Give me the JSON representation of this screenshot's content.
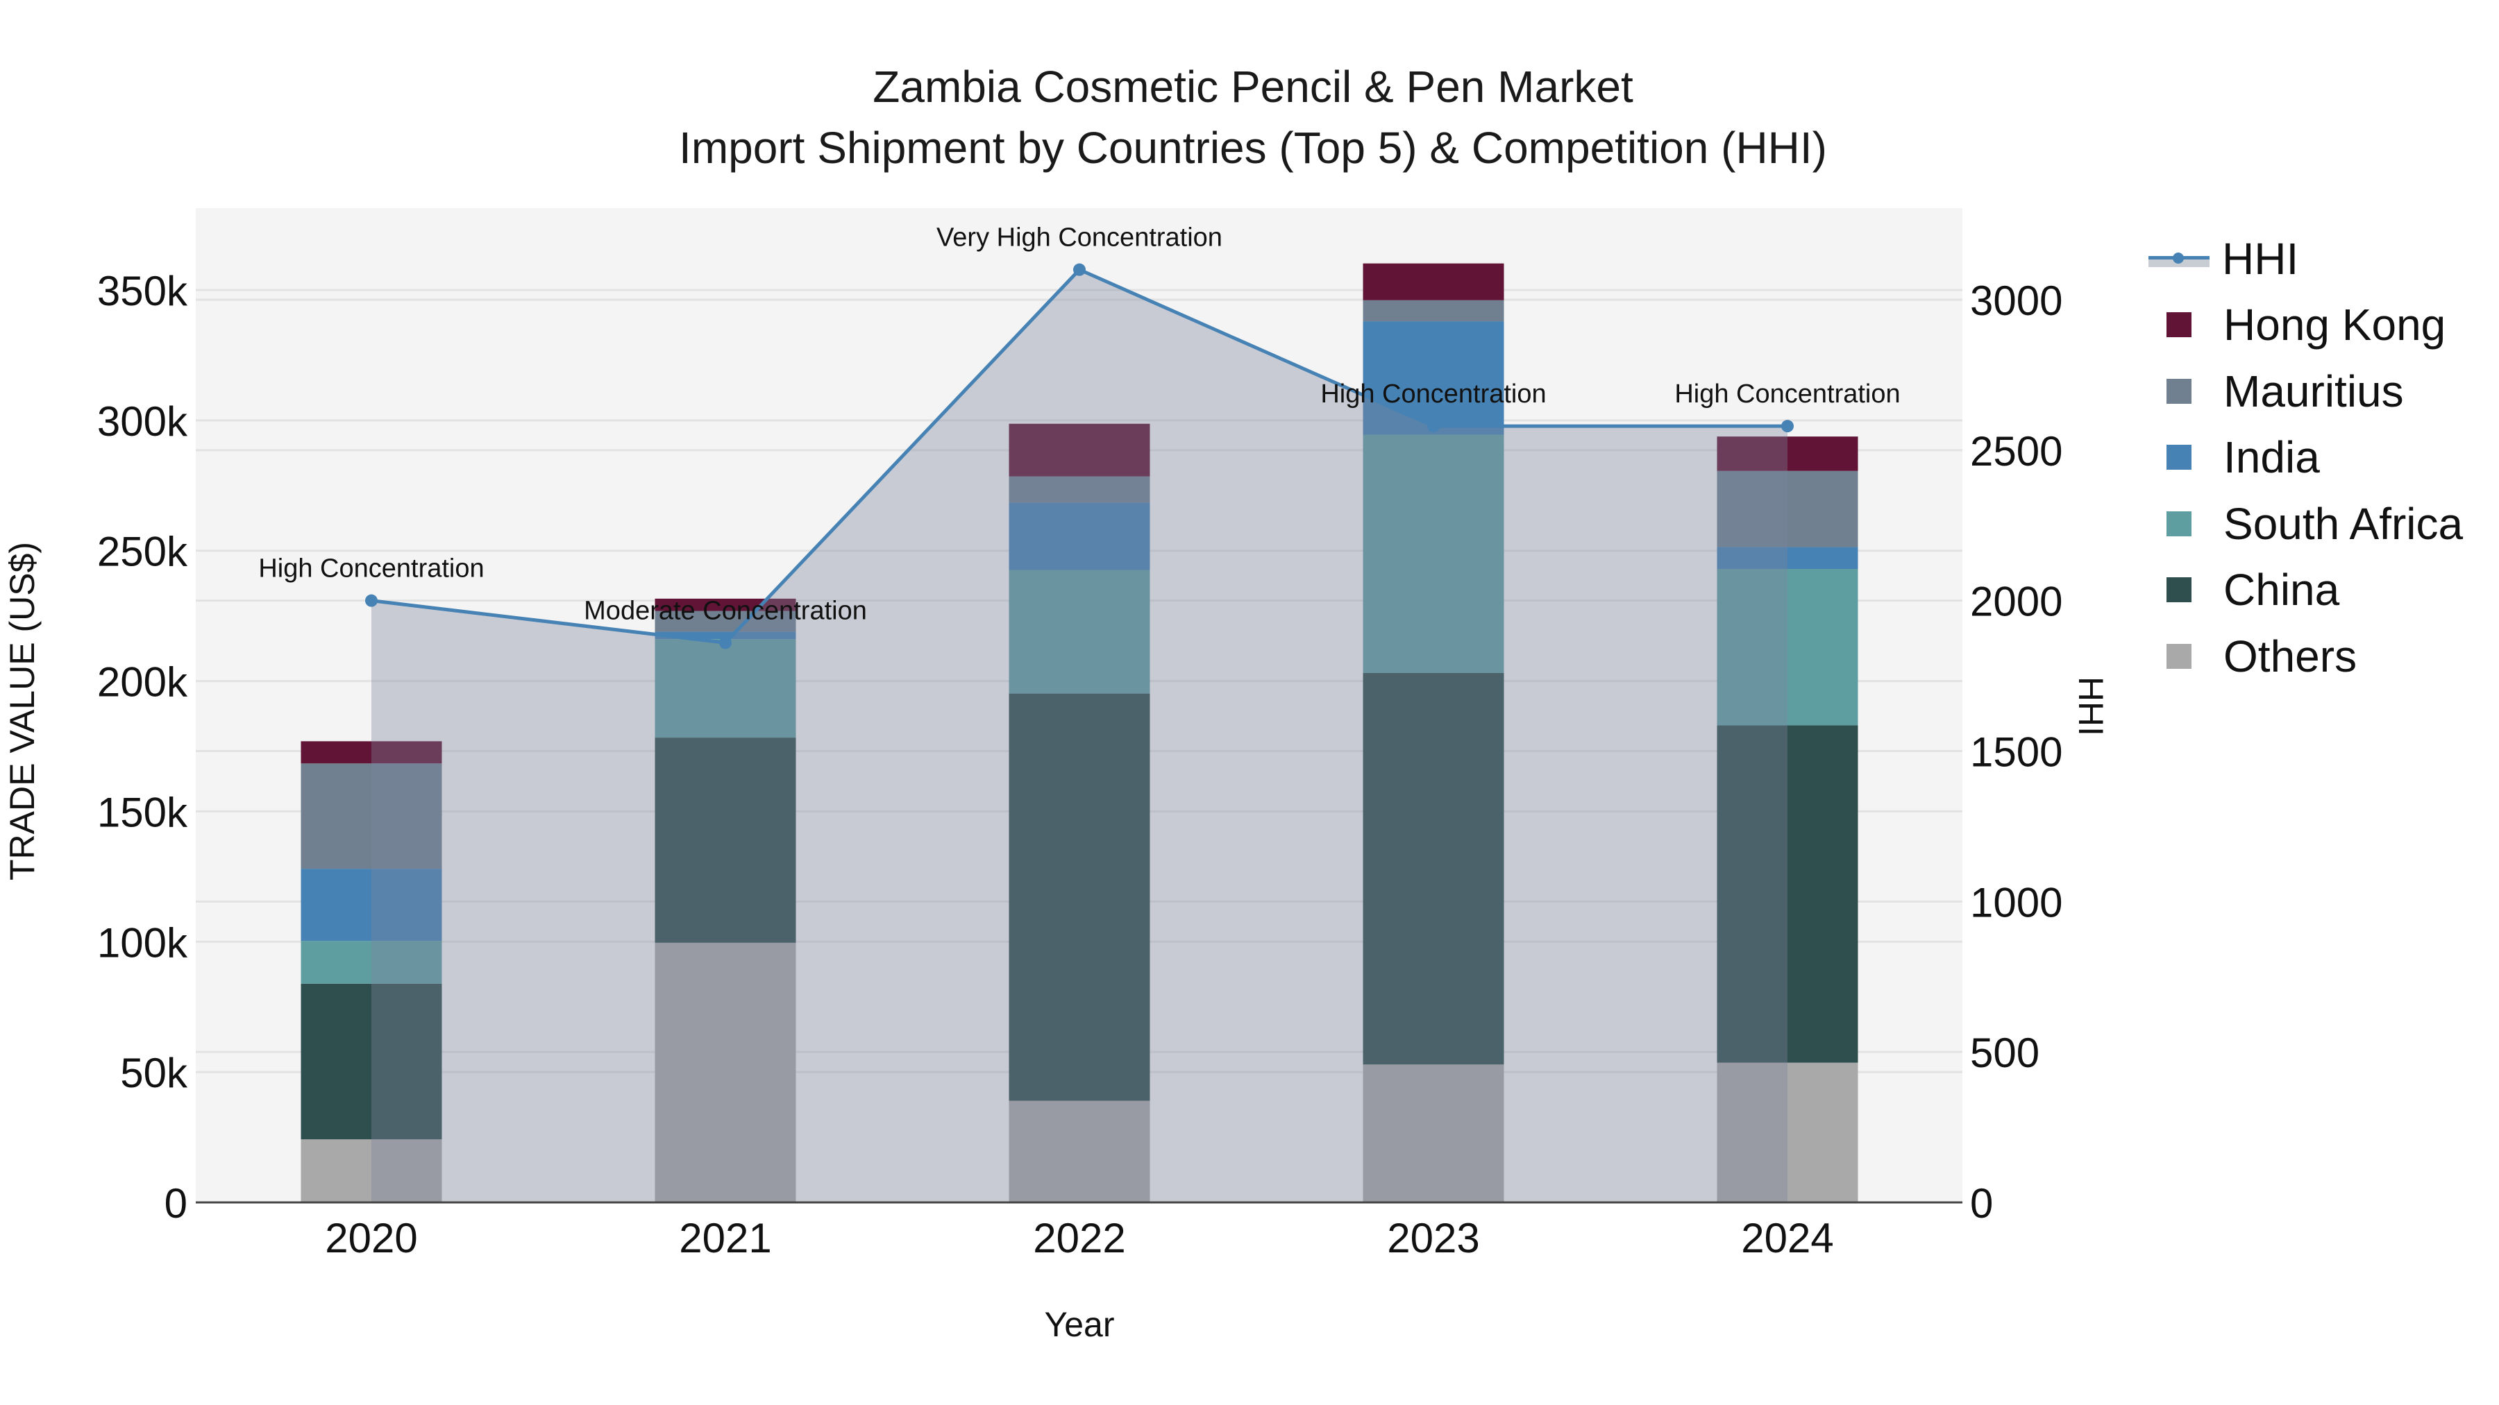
{
  "title": {
    "line1": "Zambia Cosmetic Pencil & Pen Market",
    "line2": "Import Shipment by Countries (Top 5) & Competition (HHI)"
  },
  "axes": {
    "x_title": "Year",
    "y_title": "TRADE VALUE (US$)",
    "y2_title": "HHI"
  },
  "legend": {
    "items": [
      {
        "label": "HHI",
        "type": "line",
        "color": "#4682b4"
      },
      {
        "label": "Hong Kong",
        "type": "bar",
        "color": "#611435"
      },
      {
        "label": "Mauritius",
        "type": "bar",
        "color": "#708090"
      },
      {
        "label": "India",
        "type": "bar",
        "color": "#4682b4"
      },
      {
        "label": "South Africa",
        "type": "bar",
        "color": "#5f9ea0"
      },
      {
        "label": "China",
        "type": "bar",
        "color": "#2f4f4f"
      },
      {
        "label": "Others",
        "type": "bar",
        "color": "#a9a9a9"
      }
    ]
  },
  "chart_data": {
    "type": "bar",
    "stacked": true,
    "title": "Zambia Cosmetic Pencil & Pen Market — Import Shipment by Countries (Top 5) & Competition (HHI)",
    "xlabel": "Year",
    "ylabel": "TRADE VALUE (US$)",
    "y2label": "HHI",
    "categories": [
      "2020",
      "2021",
      "2022",
      "2023",
      "2024"
    ],
    "ylim": [
      0,
      380000
    ],
    "y_ticks": [
      0,
      50000,
      100000,
      150000,
      200000,
      250000,
      300000,
      350000
    ],
    "y_tick_labels": [
      "0",
      "50k",
      "100k",
      "150k",
      "200k",
      "250k",
      "300k",
      "350k"
    ],
    "y2lim": [
      0,
      3280
    ],
    "y2_ticks": [
      0,
      500,
      1000,
      1500,
      2000,
      2500,
      3000
    ],
    "y2_tick_labels": [
      "0",
      "500",
      "1000",
      "1500",
      "2000",
      "2500",
      "3000"
    ],
    "series": [
      {
        "name": "Others",
        "color": "#a9a9a9",
        "values": [
          24200,
          99600,
          39000,
          52900,
          53600
        ]
      },
      {
        "name": "China",
        "color": "#2f4f4f",
        "values": [
          59700,
          78700,
          156200,
          150200,
          129400
        ]
      },
      {
        "name": "South Africa",
        "color": "#5f9ea0",
        "values": [
          16400,
          37800,
          47400,
          91400,
          60000
        ]
      },
      {
        "name": "India",
        "color": "#4682b4",
        "values": [
          27700,
          2800,
          25800,
          43500,
          8400
        ]
      },
      {
        "name": "Mauritius",
        "color": "#708090",
        "values": [
          40400,
          8000,
          10100,
          8100,
          29200
        ]
      },
      {
        "name": "Hong Kong",
        "color": "#611435",
        "values": [
          8500,
          4700,
          20200,
          14100,
          13200
        ]
      }
    ],
    "line_series": {
      "name": "HHI",
      "axis": "y2",
      "color": "#4682b4",
      "fill": "tozeroy",
      "values": [
        2000,
        1860,
        3100,
        2580,
        2580
      ],
      "annotations": [
        "High Concentration",
        "Moderate Concentration",
        "Very High Concentration",
        "High Concentration",
        "High Concentration"
      ]
    },
    "grid": true,
    "legend_position": "right"
  }
}
